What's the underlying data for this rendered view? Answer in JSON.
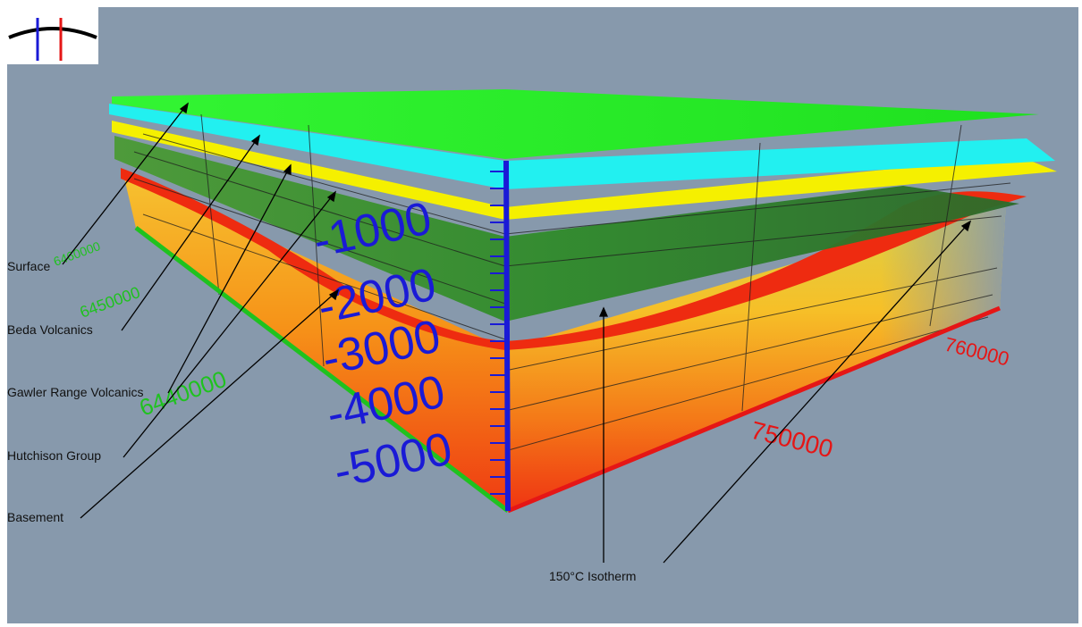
{
  "layers": [
    {
      "name": "Surface",
      "color": "#22ee22"
    },
    {
      "name": "Beda Volcanics",
      "color": "#22f0f0"
    },
    {
      "name": "Gawler Range Volcanics",
      "color": "#f5f000"
    },
    {
      "name": "Hutchison Group",
      "color": "#3a8a2a"
    },
    {
      "name": "Basement",
      "color": "#ee2b10"
    }
  ],
  "isotherm_label": "150°C Isotherm",
  "depth_ticks": [
    "-1000",
    "-2000",
    "-3000",
    "-4000",
    "-5000"
  ],
  "easting_ticks": [
    "750000",
    "760000"
  ],
  "northing_ticks": [
    "6440000",
    "6450000",
    "6460000"
  ],
  "axis_colors": {
    "depth": "#1a1ad6",
    "easting": "#e51616",
    "northing": "#1fc21f"
  },
  "icons": {
    "logo": "cross-section-logo-icon"
  }
}
